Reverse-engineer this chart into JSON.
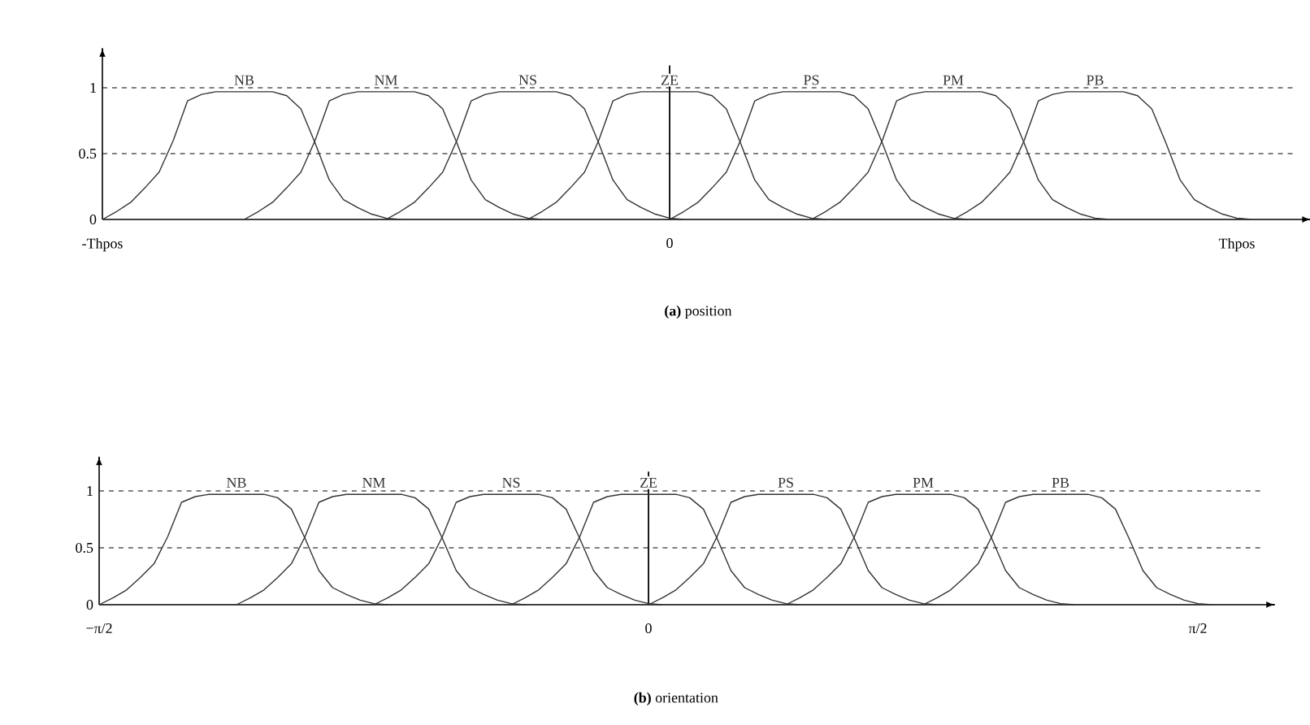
{
  "chart_data": [
    {
      "type": "line",
      "ylim": [
        0,
        1.3
      ],
      "yticks": [
        0,
        0.5,
        1
      ],
      "categories": [
        "-Thpos",
        null,
        null,
        null,
        null,
        null,
        null,
        null,
        null,
        null,
        null,
        null,
        null,
        null,
        null,
        null,
        null,
        null,
        null,
        null,
        null,
        null,
        null,
        null,
        null,
        null,
        null,
        null,
        null,
        null,
        null,
        null,
        null,
        null,
        null,
        null,
        null,
        null,
        null,
        null,
        "0",
        null,
        null,
        null,
        null,
        null,
        null,
        null,
        null,
        null,
        null,
        null,
        null,
        null,
        null,
        null,
        null,
        null,
        null,
        null,
        null,
        null,
        null,
        null,
        null,
        null,
        null,
        null,
        null,
        null,
        null,
        null,
        null,
        null,
        null,
        null,
        null,
        null,
        null,
        null,
        "Thpos",
        null,
        null,
        null,
        null
      ],
      "marker": "none",
      "line_style": "solid",
      "ref_lines": [
        {
          "axis": "y",
          "value": 1,
          "line_style": "dashed"
        },
        {
          "axis": "y",
          "value": 0.5,
          "line_style": "dashed"
        },
        {
          "axis": "x",
          "value": "0",
          "line_style": "solid"
        }
      ],
      "annotations": [
        "**(a)** position"
      ],
      "series": [
        {
          "name": "NB",
          "color": "#333333",
          "values": [
            0,
            0.06,
            0.13,
            0.24,
            0.36,
            0.6,
            0.9,
            0.95,
            0.97,
            0.97,
            0.97,
            0.97,
            0.97,
            0.94,
            0.84,
            0.58,
            0.3,
            0.15,
            0.09,
            0.04,
            0.01,
            0,
            null,
            null,
            null,
            null,
            null,
            null,
            null,
            null,
            null,
            null,
            null,
            null,
            null,
            null,
            null,
            null,
            null,
            null,
            null,
            null,
            null,
            null,
            null,
            null,
            null,
            null,
            null,
            null,
            null,
            null,
            null,
            null,
            null,
            null,
            null,
            null,
            null,
            null,
            null,
            null,
            null,
            null,
            null,
            null,
            null,
            null,
            null,
            null,
            null,
            null,
            null,
            null,
            null,
            null,
            null,
            null,
            null,
            null,
            null,
            null,
            null,
            null,
            null
          ]
        },
        {
          "name": "NM",
          "color": "#333333",
          "values": [
            null,
            null,
            null,
            null,
            null,
            null,
            null,
            null,
            null,
            null,
            0,
            0.06,
            0.13,
            0.24,
            0.36,
            0.6,
            0.9,
            0.95,
            0.97,
            0.97,
            0.97,
            0.97,
            0.97,
            0.94,
            0.84,
            0.58,
            0.3,
            0.15,
            0.09,
            0.04,
            0.01,
            0,
            null,
            null,
            null,
            null,
            null,
            null,
            null,
            null,
            null,
            null,
            null,
            null,
            null,
            null,
            null,
            null,
            null,
            null,
            null,
            null,
            null,
            null,
            null,
            null,
            null,
            null,
            null,
            null,
            null,
            null,
            null,
            null,
            null,
            null,
            null,
            null,
            null,
            null,
            null,
            null,
            null,
            null,
            null,
            null,
            null,
            null,
            null,
            null,
            null,
            null,
            null,
            null,
            null
          ]
        },
        {
          "name": "NS",
          "color": "#333333",
          "values": [
            null,
            null,
            null,
            null,
            null,
            null,
            null,
            null,
            null,
            null,
            null,
            null,
            null,
            null,
            null,
            null,
            null,
            null,
            null,
            null,
            0,
            0.06,
            0.13,
            0.24,
            0.36,
            0.6,
            0.9,
            0.95,
            0.97,
            0.97,
            0.97,
            0.97,
            0.97,
            0.94,
            0.84,
            0.58,
            0.3,
            0.15,
            0.09,
            0.04,
            0.01,
            0,
            null,
            null,
            null,
            null,
            null,
            null,
            null,
            null,
            null,
            null,
            null,
            null,
            null,
            null,
            null,
            null,
            null,
            null,
            null,
            null,
            null,
            null,
            null,
            null,
            null,
            null,
            null,
            null,
            null,
            null,
            null,
            null,
            null,
            null,
            null,
            null,
            null,
            null,
            null,
            null,
            null,
            null,
            null
          ]
        },
        {
          "name": "ZE",
          "color": "#333333",
          "values": [
            null,
            null,
            null,
            null,
            null,
            null,
            null,
            null,
            null,
            null,
            null,
            null,
            null,
            null,
            null,
            null,
            null,
            null,
            null,
            null,
            null,
            null,
            null,
            null,
            null,
            null,
            null,
            null,
            null,
            null,
            0,
            0.06,
            0.13,
            0.24,
            0.36,
            0.6,
            0.9,
            0.95,
            0.97,
            0.97,
            0.97,
            0.97,
            0.97,
            0.94,
            0.84,
            0.58,
            0.3,
            0.15,
            0.09,
            0.04,
            0.01,
            0,
            null,
            null,
            null,
            null,
            null,
            null,
            null,
            null,
            null,
            null,
            null,
            null,
            null,
            null,
            null,
            null,
            null,
            null,
            null,
            null,
            null,
            null,
            null,
            null,
            null,
            null,
            null,
            null,
            null,
            null,
            null,
            null,
            null
          ]
        },
        {
          "name": "PS",
          "color": "#333333",
          "values": [
            null,
            null,
            null,
            null,
            null,
            null,
            null,
            null,
            null,
            null,
            null,
            null,
            null,
            null,
            null,
            null,
            null,
            null,
            null,
            null,
            null,
            null,
            null,
            null,
            null,
            null,
            null,
            null,
            null,
            null,
            null,
            null,
            null,
            null,
            null,
            null,
            null,
            null,
            null,
            null,
            0,
            0.06,
            0.13,
            0.24,
            0.36,
            0.6,
            0.9,
            0.95,
            0.97,
            0.97,
            0.97,
            0.97,
            0.97,
            0.94,
            0.84,
            0.58,
            0.3,
            0.15,
            0.09,
            0.04,
            0.01,
            0,
            null,
            null,
            null,
            null,
            null,
            null,
            null,
            null,
            null,
            null,
            null,
            null,
            null,
            null,
            null,
            null,
            null,
            null,
            null,
            null,
            null,
            null,
            null
          ]
        },
        {
          "name": "PM",
          "color": "#333333",
          "values": [
            null,
            null,
            null,
            null,
            null,
            null,
            null,
            null,
            null,
            null,
            null,
            null,
            null,
            null,
            null,
            null,
            null,
            null,
            null,
            null,
            null,
            null,
            null,
            null,
            null,
            null,
            null,
            null,
            null,
            null,
            null,
            null,
            null,
            null,
            null,
            null,
            null,
            null,
            null,
            null,
            null,
            null,
            null,
            null,
            null,
            null,
            null,
            null,
            null,
            null,
            0,
            0.06,
            0.13,
            0.24,
            0.36,
            0.6,
            0.9,
            0.95,
            0.97,
            0.97,
            0.97,
            0.97,
            0.97,
            0.94,
            0.84,
            0.58,
            0.3,
            0.15,
            0.09,
            0.04,
            0.01,
            0,
            null,
            null,
            null,
            null,
            null,
            null,
            null,
            null,
            null,
            null,
            null,
            null,
            null
          ]
        },
        {
          "name": "PB",
          "color": "#333333",
          "values": [
            null,
            null,
            null,
            null,
            null,
            null,
            null,
            null,
            null,
            null,
            null,
            null,
            null,
            null,
            null,
            null,
            null,
            null,
            null,
            null,
            null,
            null,
            null,
            null,
            null,
            null,
            null,
            null,
            null,
            null,
            null,
            null,
            null,
            null,
            null,
            null,
            null,
            null,
            null,
            null,
            null,
            null,
            null,
            null,
            null,
            null,
            null,
            null,
            null,
            null,
            null,
            null,
            null,
            null,
            null,
            null,
            null,
            null,
            null,
            null,
            0,
            0.06,
            0.13,
            0.24,
            0.36,
            0.6,
            0.9,
            0.95,
            0.97,
            0.97,
            0.97,
            0.97,
            0.97,
            0.94,
            0.84,
            0.58,
            0.3,
            0.15,
            0.09,
            0.04,
            0.01,
            0,
            null,
            null,
            null
          ]
        }
      ]
    },
    {
      "type": "line",
      "ylim": [
        0,
        1.3
      ],
      "yticks": [
        0,
        0.5,
        1
      ],
      "categories": [
        "−π/2",
        null,
        null,
        null,
        null,
        null,
        null,
        null,
        null,
        null,
        null,
        null,
        null,
        null,
        null,
        null,
        null,
        null,
        null,
        null,
        null,
        null,
        null,
        null,
        null,
        null,
        null,
        null,
        null,
        null,
        null,
        null,
        null,
        null,
        null,
        null,
        null,
        null,
        null,
        null,
        "0",
        null,
        null,
        null,
        null,
        null,
        null,
        null,
        null,
        null,
        null,
        null,
        null,
        null,
        null,
        null,
        null,
        null,
        null,
        null,
        null,
        null,
        null,
        null,
        null,
        null,
        null,
        null,
        null,
        null,
        null,
        null,
        null,
        null,
        null,
        null,
        null,
        null,
        null,
        null,
        "π/2",
        null,
        null,
        null,
        null
      ],
      "marker": "none",
      "line_style": "solid",
      "ref_lines": [
        {
          "axis": "y",
          "value": 1,
          "line_style": "dashed"
        },
        {
          "axis": "y",
          "value": 0.5,
          "line_style": "dashed"
        },
        {
          "axis": "x",
          "value": "0",
          "line_style": "solid"
        }
      ],
      "annotations": [
        "**(b)** orientation"
      ],
      "series": [
        {
          "name": "NB",
          "color": "#333333",
          "values": [
            0,
            0.06,
            0.13,
            0.24,
            0.36,
            0.6,
            0.9,
            0.95,
            0.97,
            0.97,
            0.97,
            0.97,
            0.97,
            0.94,
            0.84,
            0.58,
            0.3,
            0.15,
            0.09,
            0.04,
            0.01,
            0,
            null,
            null,
            null,
            null,
            null,
            null,
            null,
            null,
            null,
            null,
            null,
            null,
            null,
            null,
            null,
            null,
            null,
            null,
            null,
            null,
            null,
            null,
            null,
            null,
            null,
            null,
            null,
            null,
            null,
            null,
            null,
            null,
            null,
            null,
            null,
            null,
            null,
            null,
            null,
            null,
            null,
            null,
            null,
            null,
            null,
            null,
            null,
            null,
            null,
            null,
            null,
            null,
            null,
            null,
            null,
            null,
            null,
            null,
            null,
            null,
            null,
            null,
            null
          ]
        },
        {
          "name": "NM",
          "color": "#333333",
          "values": [
            null,
            null,
            null,
            null,
            null,
            null,
            null,
            null,
            null,
            null,
            0,
            0.06,
            0.13,
            0.24,
            0.36,
            0.6,
            0.9,
            0.95,
            0.97,
            0.97,
            0.97,
            0.97,
            0.97,
            0.94,
            0.84,
            0.58,
            0.3,
            0.15,
            0.09,
            0.04,
            0.01,
            0,
            null,
            null,
            null,
            null,
            null,
            null,
            null,
            null,
            null,
            null,
            null,
            null,
            null,
            null,
            null,
            null,
            null,
            null,
            null,
            null,
            null,
            null,
            null,
            null,
            null,
            null,
            null,
            null,
            null,
            null,
            null,
            null,
            null,
            null,
            null,
            null,
            null,
            null,
            null,
            null,
            null,
            null,
            null,
            null,
            null,
            null,
            null,
            null,
            null,
            null,
            null,
            null,
            null
          ]
        },
        {
          "name": "NS",
          "color": "#333333",
          "values": [
            null,
            null,
            null,
            null,
            null,
            null,
            null,
            null,
            null,
            null,
            null,
            null,
            null,
            null,
            null,
            null,
            null,
            null,
            null,
            null,
            0,
            0.06,
            0.13,
            0.24,
            0.36,
            0.6,
            0.9,
            0.95,
            0.97,
            0.97,
            0.97,
            0.97,
            0.97,
            0.94,
            0.84,
            0.58,
            0.3,
            0.15,
            0.09,
            0.04,
            0.01,
            0,
            null,
            null,
            null,
            null,
            null,
            null,
            null,
            null,
            null,
            null,
            null,
            null,
            null,
            null,
            null,
            null,
            null,
            null,
            null,
            null,
            null,
            null,
            null,
            null,
            null,
            null,
            null,
            null,
            null,
            null,
            null,
            null,
            null,
            null,
            null,
            null,
            null,
            null,
            null,
            null,
            null,
            null,
            null
          ]
        },
        {
          "name": "ZE",
          "color": "#333333",
          "values": [
            null,
            null,
            null,
            null,
            null,
            null,
            null,
            null,
            null,
            null,
            null,
            null,
            null,
            null,
            null,
            null,
            null,
            null,
            null,
            null,
            null,
            null,
            null,
            null,
            null,
            null,
            null,
            null,
            null,
            null,
            0,
            0.06,
            0.13,
            0.24,
            0.36,
            0.6,
            0.9,
            0.95,
            0.97,
            0.97,
            0.97,
            0.97,
            0.97,
            0.94,
            0.84,
            0.58,
            0.3,
            0.15,
            0.09,
            0.04,
            0.01,
            0,
            null,
            null,
            null,
            null,
            null,
            null,
            null,
            null,
            null,
            null,
            null,
            null,
            null,
            null,
            null,
            null,
            null,
            null,
            null,
            null,
            null,
            null,
            null,
            null,
            null,
            null,
            null,
            null,
            null,
            null,
            null,
            null,
            null
          ]
        },
        {
          "name": "PS",
          "color": "#333333",
          "values": [
            null,
            null,
            null,
            null,
            null,
            null,
            null,
            null,
            null,
            null,
            null,
            null,
            null,
            null,
            null,
            null,
            null,
            null,
            null,
            null,
            null,
            null,
            null,
            null,
            null,
            null,
            null,
            null,
            null,
            null,
            null,
            null,
            null,
            null,
            null,
            null,
            null,
            null,
            null,
            null,
            0,
            0.06,
            0.13,
            0.24,
            0.36,
            0.6,
            0.9,
            0.95,
            0.97,
            0.97,
            0.97,
            0.97,
            0.97,
            0.94,
            0.84,
            0.58,
            0.3,
            0.15,
            0.09,
            0.04,
            0.01,
            0,
            null,
            null,
            null,
            null,
            null,
            null,
            null,
            null,
            null,
            null,
            null,
            null,
            null,
            null,
            null,
            null,
            null,
            null,
            null,
            null,
            null,
            null,
            null
          ]
        },
        {
          "name": "PM",
          "color": "#333333",
          "values": [
            null,
            null,
            null,
            null,
            null,
            null,
            null,
            null,
            null,
            null,
            null,
            null,
            null,
            null,
            null,
            null,
            null,
            null,
            null,
            null,
            null,
            null,
            null,
            null,
            null,
            null,
            null,
            null,
            null,
            null,
            null,
            null,
            null,
            null,
            null,
            null,
            null,
            null,
            null,
            null,
            null,
            null,
            null,
            null,
            null,
            null,
            null,
            null,
            null,
            null,
            0,
            0.06,
            0.13,
            0.24,
            0.36,
            0.6,
            0.9,
            0.95,
            0.97,
            0.97,
            0.97,
            0.97,
            0.97,
            0.94,
            0.84,
            0.58,
            0.3,
            0.15,
            0.09,
            0.04,
            0.01,
            0,
            null,
            null,
            null,
            null,
            null,
            null,
            null,
            null,
            null,
            null,
            null,
            null,
            null
          ]
        },
        {
          "name": "PB",
          "color": "#333333",
          "values": [
            null,
            null,
            null,
            null,
            null,
            null,
            null,
            null,
            null,
            null,
            null,
            null,
            null,
            null,
            null,
            null,
            null,
            null,
            null,
            null,
            null,
            null,
            null,
            null,
            null,
            null,
            null,
            null,
            null,
            null,
            null,
            null,
            null,
            null,
            null,
            null,
            null,
            null,
            null,
            null,
            null,
            null,
            null,
            null,
            null,
            null,
            null,
            null,
            null,
            null,
            null,
            null,
            null,
            null,
            null,
            null,
            null,
            null,
            null,
            null,
            0,
            0.06,
            0.13,
            0.24,
            0.36,
            0.6,
            0.9,
            0.95,
            0.97,
            0.97,
            0.97,
            0.97,
            0.97,
            0.94,
            0.84,
            0.58,
            0.3,
            0.15,
            0.09,
            0.04,
            0.01,
            0,
            null,
            null,
            null
          ]
        }
      ]
    }
  ]
}
